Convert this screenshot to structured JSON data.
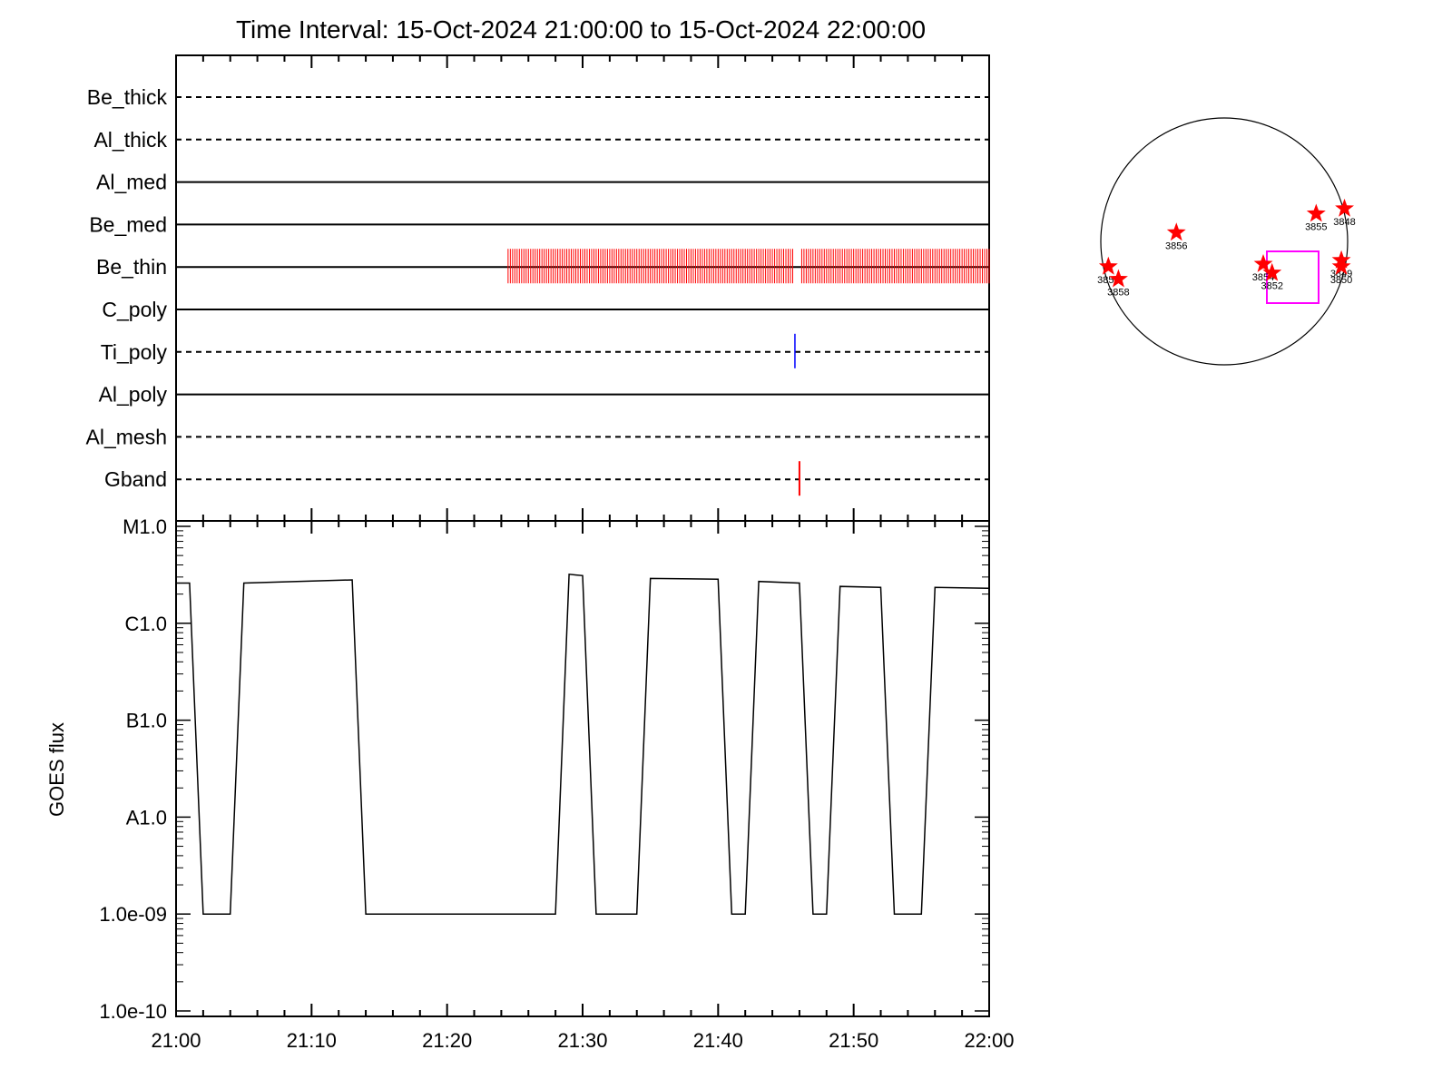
{
  "title": "Time Interval: 15-Oct-2024 21:00:00 to 15-Oct-2024 22:00:00",
  "colors": {
    "axis": "#000000",
    "be_thin_marks": "#ff0000",
    "ti_poly_mark": "#0000ff",
    "gband_mark": "#ff0000",
    "goes_line": "#000000",
    "active_region_star": "#ff0000",
    "fov_box": "#ff00ff",
    "solar_disk": "#000000"
  },
  "chart_data": [
    {
      "type": "scatter",
      "panel": "filter-timeline",
      "x_range": [
        "21:00",
        "22:00"
      ],
      "filters": [
        {
          "name": "Be_thick",
          "line_style": "dashed"
        },
        {
          "name": "Al_thick",
          "line_style": "dashed"
        },
        {
          "name": "Al_med",
          "line_style": "solid"
        },
        {
          "name": "Be_med",
          "line_style": "solid"
        },
        {
          "name": "Be_thin",
          "line_style": "solid"
        },
        {
          "name": "C_poly",
          "line_style": "solid"
        },
        {
          "name": "Ti_poly",
          "line_style": "dashed"
        },
        {
          "name": "Al_poly",
          "line_style": "solid"
        },
        {
          "name": "Al_mesh",
          "line_style": "dashed"
        },
        {
          "name": "Gband",
          "line_style": "dashed"
        }
      ],
      "observations": {
        "Be_thin": {
          "cadence_seconds": 10,
          "intervals": [
            [
              "21:24:30",
              "21:45:30"
            ],
            [
              "21:46:10",
              "22:00:00"
            ]
          ]
        },
        "Ti_poly": {
          "times": [
            "21:45:40"
          ]
        },
        "Gband": {
          "times": [
            "21:46:00"
          ]
        }
      }
    },
    {
      "type": "line",
      "panel": "goes-flux",
      "ylabel": "GOES flux",
      "y_scale": "log",
      "yticks": [
        "1.0e-10",
        "1.0e-09",
        "A1.0",
        "B1.0",
        "C1.0",
        "M1.0"
      ],
      "yticks_values": [
        1e-10,
        1e-09,
        1e-08,
        1e-07,
        1e-06,
        1e-05
      ],
      "ylim": [
        1e-10,
        1e-05
      ],
      "xticks": [
        "21:00",
        "21:10",
        "21:20",
        "21:30",
        "21:40",
        "21:50",
        "22:00"
      ],
      "x_range": [
        "21:00",
        "22:00"
      ],
      "series": [
        {
          "x": [
            "21:00",
            "21:01",
            "21:02",
            "21:04",
            "21:05",
            "21:13",
            "21:14",
            "21:28",
            "21:29",
            "21:30",
            "21:31",
            "21:34",
            "21:35",
            "21:40",
            "21:41",
            "21:42",
            "21:43",
            "21:46",
            "21:47",
            "21:48",
            "21:49",
            "21:52",
            "21:53",
            "21:55",
            "21:56",
            "22:00"
          ],
          "y": [
            2.6e-06,
            2.6e-06,
            1e-09,
            1e-09,
            2.6e-06,
            2.8e-06,
            1e-09,
            1e-09,
            3.2e-06,
            3.1e-06,
            1e-09,
            1e-09,
            2.9e-06,
            2.85e-06,
            1e-09,
            1e-09,
            2.7e-06,
            2.6e-06,
            1e-09,
            1e-09,
            2.4e-06,
            2.35e-06,
            1e-09,
            1e-09,
            2.35e-06,
            2.3e-06
          ]
        }
      ]
    }
  ],
  "solar_map": {
    "active_regions": [
      {
        "id": "3848",
        "x_arcsec": 955,
        "y_arcsec": 260
      },
      {
        "id": "3855",
        "x_arcsec": 730,
        "y_arcsec": 220
      },
      {
        "id": "3856",
        "x_arcsec": -380,
        "y_arcsec": 70
      },
      {
        "id": "3857",
        "x_arcsec": -920,
        "y_arcsec": -200
      },
      {
        "id": "3858",
        "x_arcsec": -840,
        "y_arcsec": -300
      },
      {
        "id": "3854",
        "x_arcsec": 310,
        "y_arcsec": -180
      },
      {
        "id": "3852",
        "x_arcsec": 380,
        "y_arcsec": -250
      },
      {
        "id": "3849",
        "x_arcsec": 930,
        "y_arcsec": -150
      },
      {
        "id": "3850",
        "x_arcsec": 930,
        "y_arcsec": -200
      }
    ]
  }
}
